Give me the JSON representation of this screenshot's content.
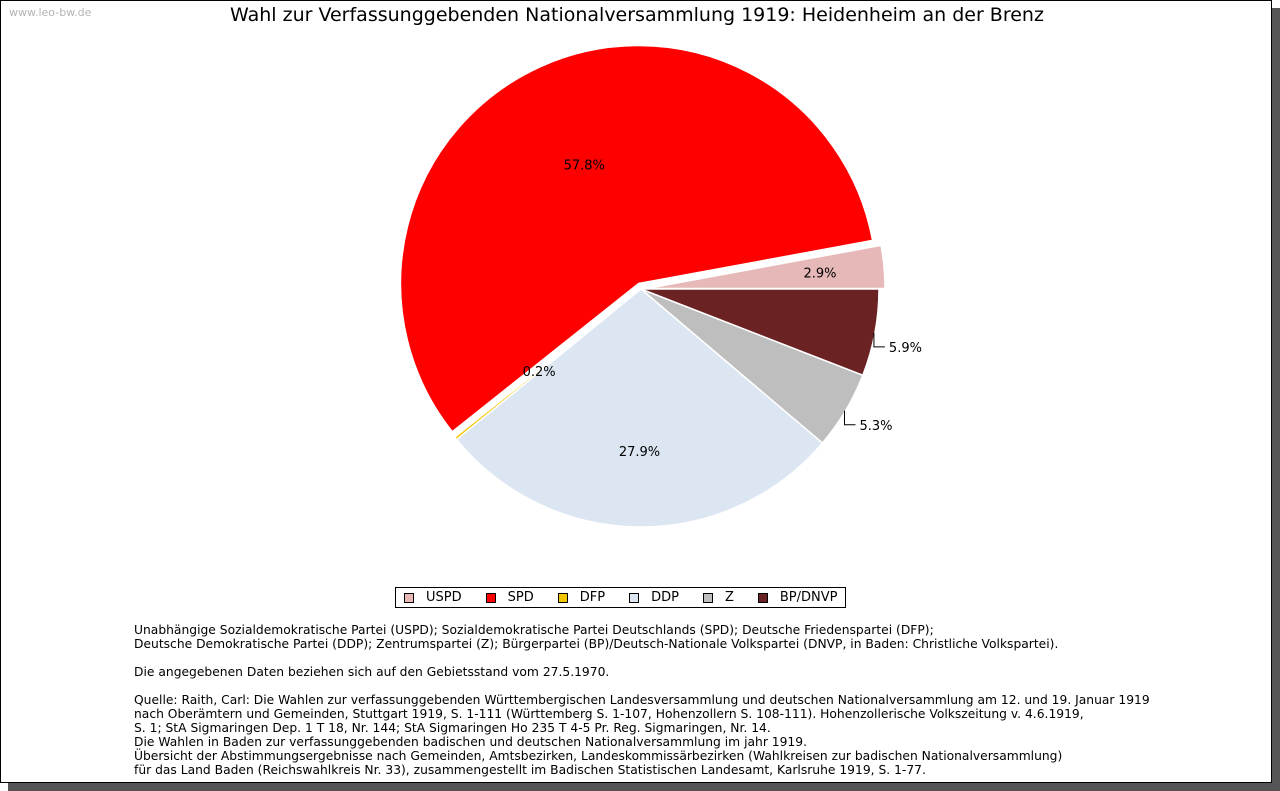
{
  "watermark": "www.leo-bw.de",
  "chart_data": {
    "type": "pie",
    "title": "Wahl zur Verfassunggebenden Nationalversammlung 1919: Heidenheim an der Brenz",
    "categories": [
      "USPD",
      "SPD",
      "DFP",
      "DDP",
      "Z",
      "BP/DNVP"
    ],
    "values": [
      2.9,
      57.8,
      0.2,
      27.9,
      5.3,
      5.9
    ],
    "labels": [
      "2.9%",
      "57.8%",
      "0.2%",
      "27.9%",
      "5.3%",
      "5.9%"
    ],
    "colors": [
      "#e6b8b8",
      "#ff0000",
      "#f5c400",
      "#dce6f2",
      "#bebebe",
      "#6b2222"
    ],
    "legend_position": "bottom"
  },
  "notes": {
    "parties": [
      "Unabhängige Sozialdemokratische Partei (USPD); Sozialdemokratische Partei Deutschlands (SPD); Deutsche Friedenspartei (DFP);",
      "Deutsche Demokratische Partei (DDP); Zentrumspartei (Z); Bürgerpartei (BP)/Deutsch-Nationale Volkspartei (DNVP, in Baden: Christliche Volkspartei)."
    ],
    "status": "Die angegebenen Daten beziehen sich auf den Gebietsstand vom 27.5.1970.",
    "source": [
      "Quelle: Raith, Carl: Die Wahlen zur verfassunggebenden Württembergischen Landesversammlung und deutschen Nationalversammlung am 12. und 19. Januar 1919",
      "nach Oberämtern und Gemeinden, Stuttgart 1919, S. 1-111 (Württemberg S. 1-107, Hohenzollern S. 108-111). Hohenzollerische Volkszeitung v. 4.6.1919,",
      "S. 1; StA Sigmaringen Dep. 1 T 18, Nr. 144; StA Sigmaringen Ho 235 T 4-5 Pr. Reg. Sigmaringen, Nr. 14.",
      "Die Wahlen in Baden zur verfassunggebenden badischen und deutschen Nationalversammlung im jahr 1919.",
      "Übersicht der Abstimmungsergebnisse nach Gemeinden, Amtsbezirken, Landeskommissärbezirken (Wahlkreisen zur badischen Nationalversammlung)",
      "für das Land Baden (Reichswahlkreis Nr. 33), zusammengestellt im Badischen Statistischen Landesamt, Karlsruhe 1919, S. 1-77."
    ]
  }
}
